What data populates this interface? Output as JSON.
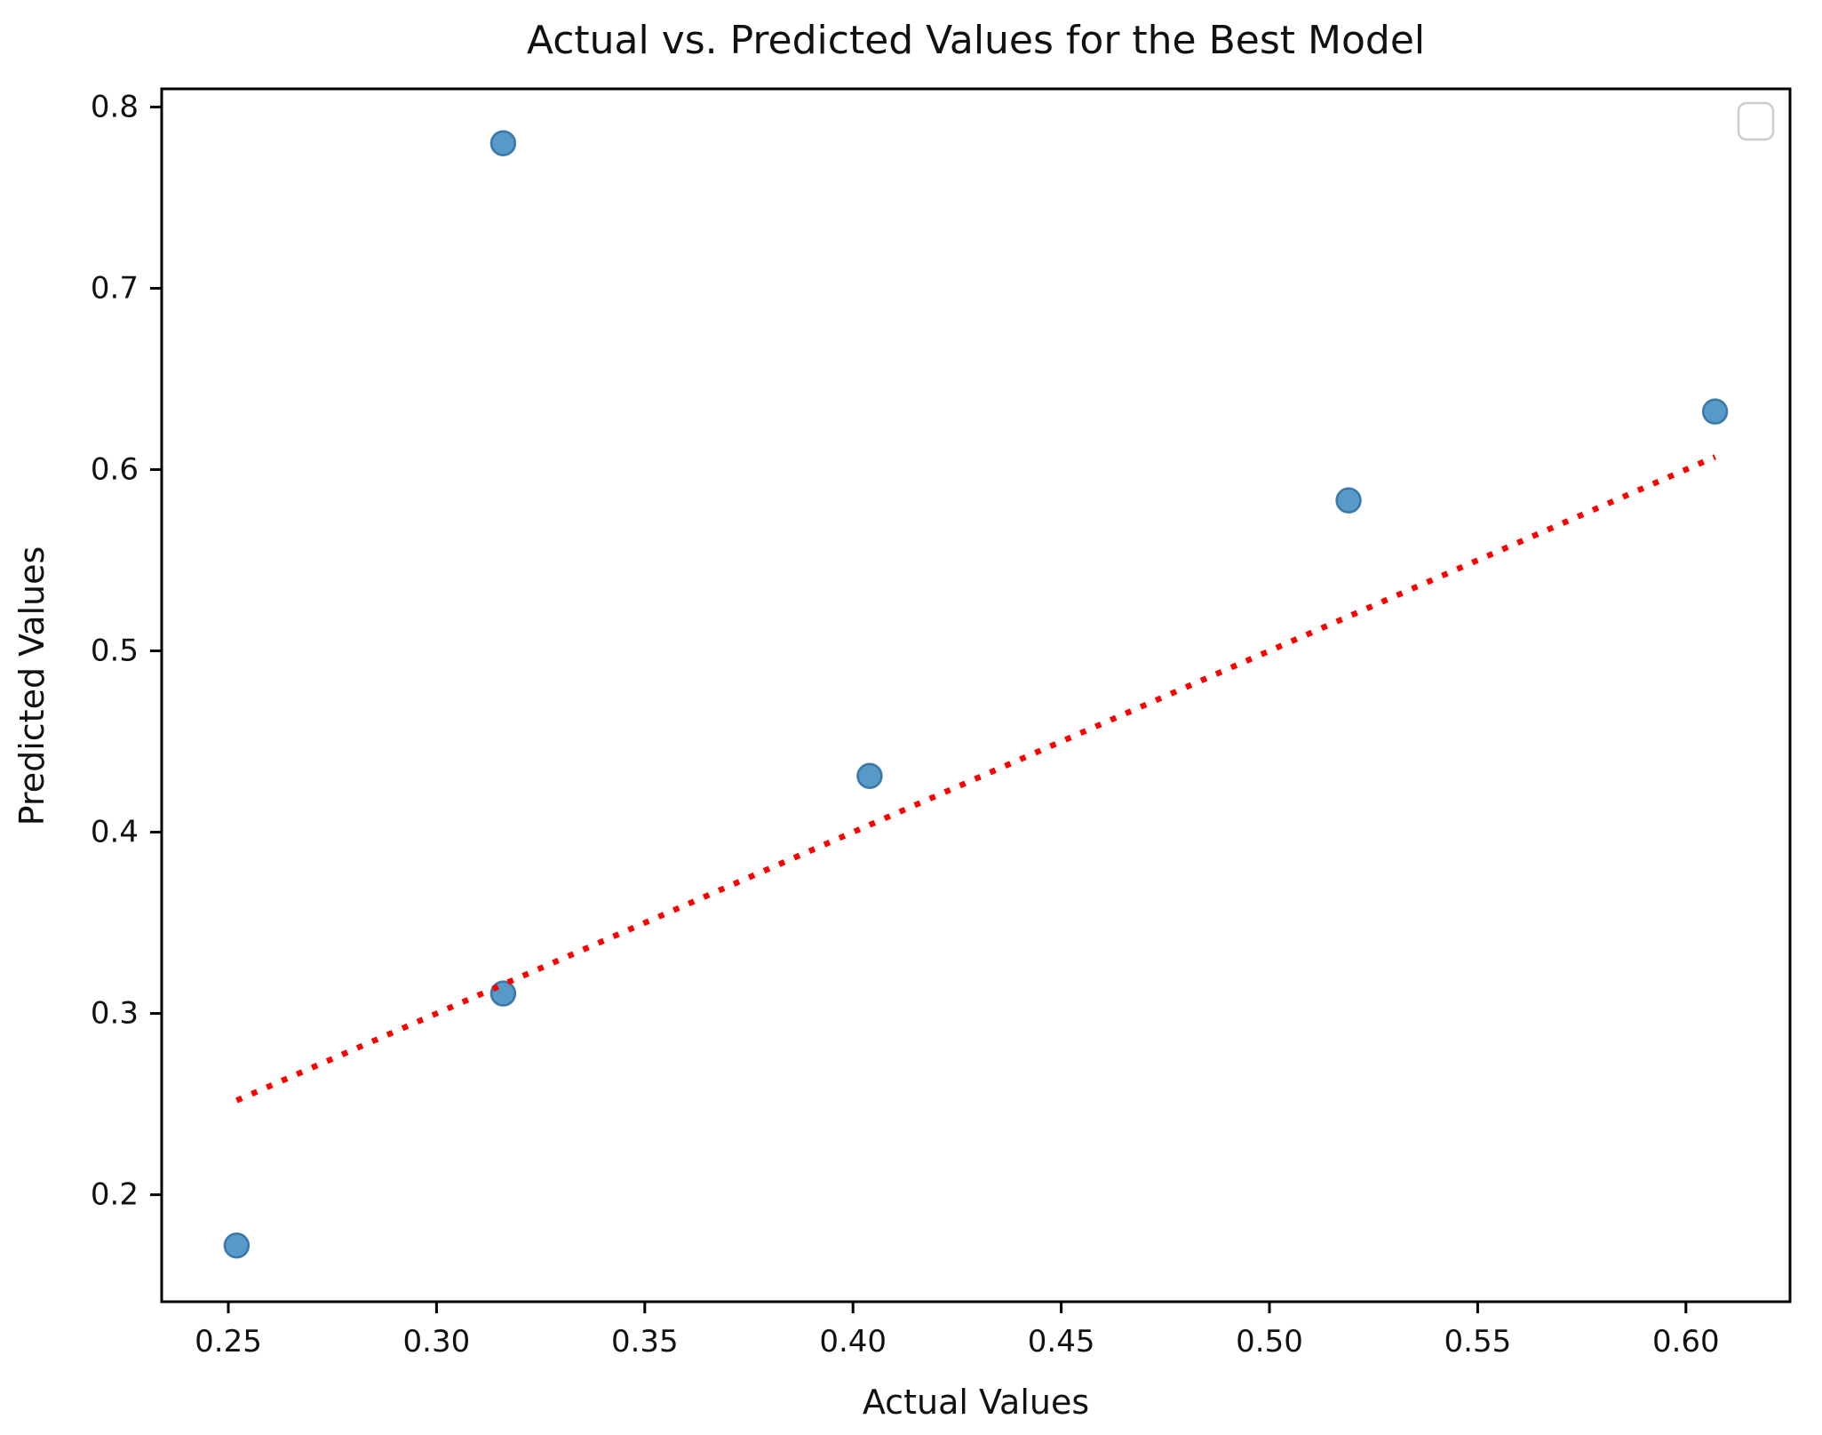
{
  "figure": {
    "background_color": "#ffffff"
  },
  "chart_data": {
    "type": "scatter",
    "title": "Actual vs. Predicted Values for the Best Model",
    "xlabel": "Actual Values",
    "ylabel": "Predicted Values",
    "xlim": [
      0.234,
      0.625
    ],
    "ylim": [
      0.141,
      0.81
    ],
    "grid": false,
    "x_ticks": {
      "values": [
        0.25,
        0.3,
        0.35,
        0.4,
        0.45,
        0.5,
        0.55,
        0.6
      ],
      "labels": [
        "0.25",
        "0.30",
        "0.35",
        "0.40",
        "0.45",
        "0.50",
        "0.55",
        "0.60"
      ]
    },
    "y_ticks": {
      "values": [
        0.2,
        0.3,
        0.4,
        0.5,
        0.6,
        0.7,
        0.8
      ],
      "labels": [
        "0.2",
        "0.3",
        "0.4",
        "0.5",
        "0.6",
        "0.7",
        "0.8"
      ]
    },
    "series": [
      {
        "name": "actual-vs-predicted-points",
        "type": "scatter",
        "marker": "circle",
        "color": "#1f77b4",
        "alpha": 0.75,
        "points": [
          {
            "x": 0.252,
            "y": 0.172
          },
          {
            "x": 0.316,
            "y": 0.78
          },
          {
            "x": 0.316,
            "y": 0.311
          },
          {
            "x": 0.404,
            "y": 0.431
          },
          {
            "x": 0.519,
            "y": 0.583
          },
          {
            "x": 0.607,
            "y": 0.632
          }
        ]
      },
      {
        "name": "identity-reference-line",
        "type": "line",
        "style": "dotted",
        "color": "#ff0000",
        "points": [
          {
            "x": 0.252,
            "y": 0.252
          },
          {
            "x": 0.607,
            "y": 0.607
          }
        ]
      }
    ],
    "legend": {
      "visible": true,
      "position": "upper right",
      "entries": []
    }
  },
  "colors": {
    "point_fill": "#1f77b4",
    "point_edge": "#2a6a9f",
    "line": "#ff0000",
    "axis": "#000000",
    "legend_border": "#cccccc",
    "text": "#111111"
  }
}
